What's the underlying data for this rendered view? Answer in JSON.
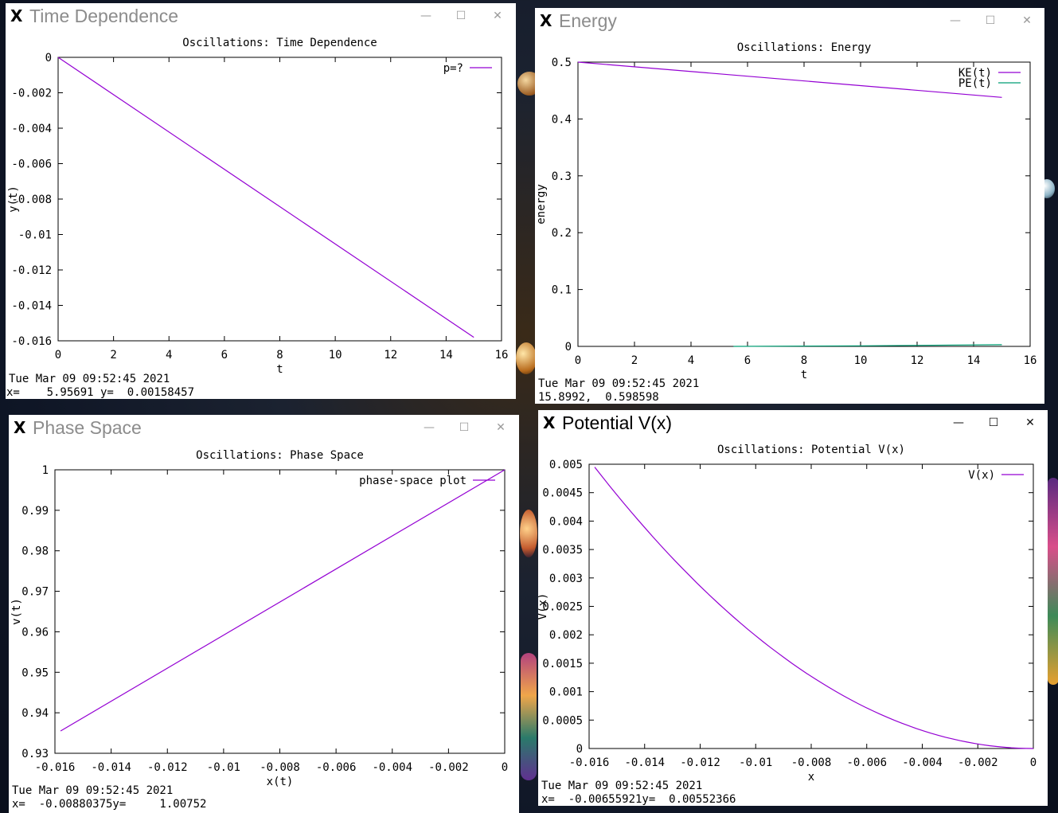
{
  "windows": [
    {
      "id": "time",
      "title": "Time Dependence",
      "state": "inactive",
      "plot": {
        "title": "Oscillations: Time Dependence",
        "xlabel": "t",
        "ylabel": "y(t)",
        "xlim": [
          0,
          16
        ],
        "ylim": [
          -0.016,
          0
        ],
        "xticks": [
          0,
          2,
          4,
          6,
          8,
          10,
          12,
          14,
          16
        ],
        "xtick_labels": [
          "0",
          "2",
          "4",
          "6",
          "8",
          "10",
          "12",
          "14",
          "16"
        ],
        "yticks": [
          0,
          -0.002,
          -0.004,
          -0.006,
          -0.008,
          -0.01,
          -0.012,
          -0.014,
          -0.016
        ],
        "ytick_labels": [
          "0",
          "-0.002",
          "-0.004",
          "-0.006",
          "-0.008",
          "-0.01",
          "-0.012",
          "-0.014",
          "-0.016"
        ]
      },
      "status_date": "Tue Mar 09 09:52:45 2021",
      "status_coords": "x=    5.95691 y=  0.00158457"
    },
    {
      "id": "energy",
      "title": "Energy",
      "state": "inactive",
      "plot": {
        "title": "Oscillations: Energy",
        "xlabel": "t",
        "ylabel": "energy",
        "xlim": [
          0,
          16
        ],
        "ylim": [
          0,
          0.5
        ],
        "xticks": [
          0,
          2,
          4,
          6,
          8,
          10,
          12,
          14,
          16
        ],
        "xtick_labels": [
          "0",
          "2",
          "4",
          "6",
          "8",
          "10",
          "12",
          "14",
          "16"
        ],
        "yticks": [
          0,
          0.1,
          0.2,
          0.3,
          0.4,
          0.5
        ],
        "ytick_labels": [
          "0",
          "0.1",
          "0.2",
          "0.3",
          "0.4",
          "0.5"
        ]
      },
      "status_date": "Tue Mar 09 09:52:45 2021",
      "status_coords": "15.8992,  0.598598"
    },
    {
      "id": "phase",
      "title": "Phase Space",
      "state": "inactive",
      "plot": {
        "title": "Oscillations: Phase Space",
        "xlabel": "x(t)",
        "ylabel": "v(t)",
        "xlim": [
          -0.016,
          0
        ],
        "ylim": [
          0.93,
          1
        ],
        "xticks": [
          -0.016,
          -0.014,
          -0.012,
          -0.01,
          -0.008,
          -0.006,
          -0.004,
          -0.002,
          0
        ],
        "xtick_labels": [
          "-0.016",
          "-0.014",
          "-0.012",
          "-0.01",
          "-0.008",
          "-0.006",
          "-0.004",
          "-0.002",
          "0"
        ],
        "yticks": [
          0.93,
          0.94,
          0.95,
          0.96,
          0.97,
          0.98,
          0.99,
          1
        ],
        "ytick_labels": [
          "0.93",
          "0.94",
          "0.95",
          "0.96",
          "0.97",
          "0.98",
          "0.99",
          "1"
        ]
      },
      "status_date": "Tue Mar 09 09:52:45 2021",
      "status_coords": "x=  -0.00880375y=     1.00752"
    },
    {
      "id": "potential",
      "title": "Potential V(x)",
      "state": "active",
      "plot": {
        "title": "Oscillations: Potential V(x)",
        "xlabel": "x",
        "ylabel": "V(x)",
        "xlim": [
          -0.016,
          0
        ],
        "ylim": [
          0,
          0.005
        ],
        "xticks": [
          -0.016,
          -0.014,
          -0.012,
          -0.01,
          -0.008,
          -0.006,
          -0.004,
          -0.002,
          0
        ],
        "xtick_labels": [
          "-0.016",
          "-0.014",
          "-0.012",
          "-0.01",
          "-0.008",
          "-0.006",
          "-0.004",
          "-0.002",
          "0"
        ],
        "yticks": [
          0,
          0.0005,
          0.001,
          0.0015,
          0.002,
          0.0025,
          0.003,
          0.0035,
          0.004,
          0.0045,
          0.005
        ],
        "ytick_labels": [
          "0",
          "0.0005",
          "0.001",
          "0.0015",
          "0.002",
          "0.0025",
          "0.003",
          "0.0035",
          "0.004",
          "0.0045",
          "0.005"
        ]
      },
      "status_date": "Tue Mar 09 09:52:45 2021",
      "status_coords": "x=  -0.00655921y=  0.00552366"
    }
  ],
  "controls": {
    "minimize": "—",
    "maximize": "☐",
    "close": "✕"
  },
  "colors": {
    "series_purple": "#9400d3",
    "series_teal": "#009e73",
    "window_bg": "#ffffff",
    "inactive_title": "#8c8c8c"
  },
  "chart_data": [
    {
      "type": "line",
      "title": "Oscillations: Time Dependence",
      "xlabel": "t",
      "ylabel": "y(t)",
      "xlim": [
        0,
        16
      ],
      "ylim": [
        -0.016,
        0
      ],
      "grid": false,
      "legend_position": "top-right",
      "series": [
        {
          "name": "p=?",
          "color": "#9400d3",
          "x": [
            0,
            15
          ],
          "y": [
            0,
            -0.0158
          ]
        }
      ]
    },
    {
      "type": "line",
      "title": "Oscillations: Energy",
      "xlabel": "t",
      "ylabel": "energy",
      "xlim": [
        0,
        16
      ],
      "ylim": [
        0,
        0.5
      ],
      "grid": false,
      "legend_position": "top-right",
      "series": [
        {
          "name": "KE(t)",
          "color": "#9400d3",
          "x": [
            0,
            15
          ],
          "y": [
            0.5,
            0.438
          ]
        },
        {
          "name": "PE(t)",
          "color": "#009e73",
          "x": [
            5.5,
            10,
            15
          ],
          "y": [
            0.0,
            0.001,
            0.003
          ]
        }
      ]
    },
    {
      "type": "line",
      "title": "Oscillations: Phase Space",
      "xlabel": "x(t)",
      "ylabel": "v(t)",
      "xlim": [
        -0.016,
        0
      ],
      "ylim": [
        0.93,
        1
      ],
      "grid": false,
      "legend_position": "top-right",
      "series": [
        {
          "name": "phase-space plot",
          "color": "#9400d3",
          "x": [
            -0.0158,
            0
          ],
          "y": [
            0.9355,
            1.0
          ]
        }
      ]
    },
    {
      "type": "line",
      "title": "Oscillations: Potential V(x)",
      "xlabel": "x",
      "ylabel": "V(x)",
      "xlim": [
        -0.016,
        0
      ],
      "ylim": [
        0,
        0.005
      ],
      "grid": false,
      "legend_position": "top-right",
      "series": [
        {
          "name": "V(x)",
          "color": "#9400d3",
          "x": [
            -0.0158,
            -0.014,
            -0.012,
            -0.01,
            -0.008,
            -0.006,
            -0.004,
            -0.002,
            -0.001,
            0
          ],
          "y": [
            0.00495,
            0.0039,
            0.00288,
            0.002,
            0.00128,
            0.00072,
            0.00032,
            8e-05,
            2e-05,
            0
          ]
        }
      ]
    }
  ]
}
